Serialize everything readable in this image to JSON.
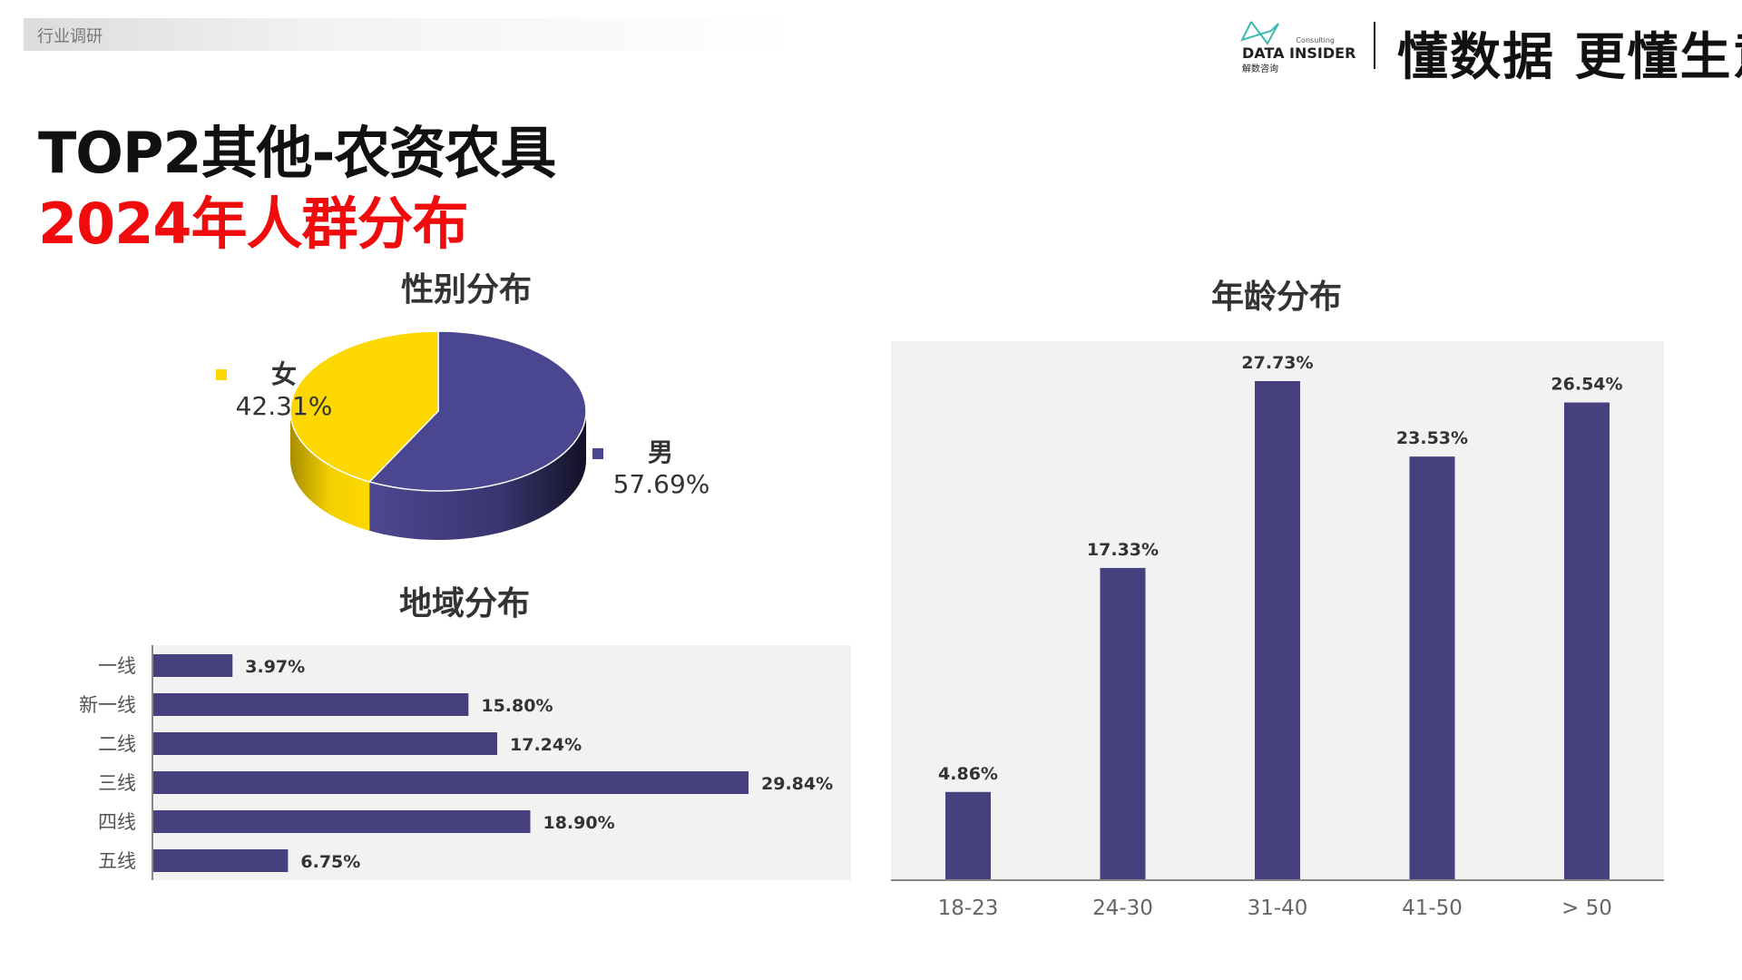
{
  "header": {
    "tag": "行业调研",
    "logo_text": "DATA INSIDER",
    "logo_sub": "解数咨询",
    "logo_small": "Consulting",
    "slogan": "懂数据 更懂生意"
  },
  "title": {
    "line1": "TOP2其他-农资农具",
    "line2": "2024年人群分布"
  },
  "colors": {
    "purple": "#46407e",
    "yellow": "#fdd800",
    "panel_bg": "#f2f2f2",
    "title_red": "#f00c0c"
  },
  "chart_data": [
    {
      "type": "pie",
      "title": "性别分布",
      "style": "3d",
      "slices": [
        {
          "name": "女",
          "value": 42.31,
          "label": "42.31%",
          "color": "#fdd800"
        },
        {
          "name": "男",
          "value": 57.69,
          "label": "57.69%",
          "color": "#4b4690"
        }
      ]
    },
    {
      "type": "bar",
      "orientation": "horizontal",
      "title": "地域分布",
      "categories": [
        "一线",
        "新一线",
        "二线",
        "三线",
        "四线",
        "五线"
      ],
      "values": [
        3.97,
        15.8,
        17.24,
        29.84,
        18.9,
        6.75
      ],
      "labels": [
        "3.97%",
        "15.80%",
        "17.24%",
        "29.84%",
        "18.90%",
        "6.75%"
      ],
      "grid": false
    },
    {
      "type": "bar",
      "orientation": "vertical",
      "title": "年龄分布",
      "categories": [
        "18-23",
        "24-30",
        "31-40",
        "41-50",
        "> 50"
      ],
      "values": [
        4.86,
        17.33,
        27.73,
        23.53,
        26.54
      ],
      "labels": [
        "4.86%",
        "17.33%",
        "27.73%",
        "23.53%",
        "26.54%"
      ],
      "grid": false
    }
  ]
}
